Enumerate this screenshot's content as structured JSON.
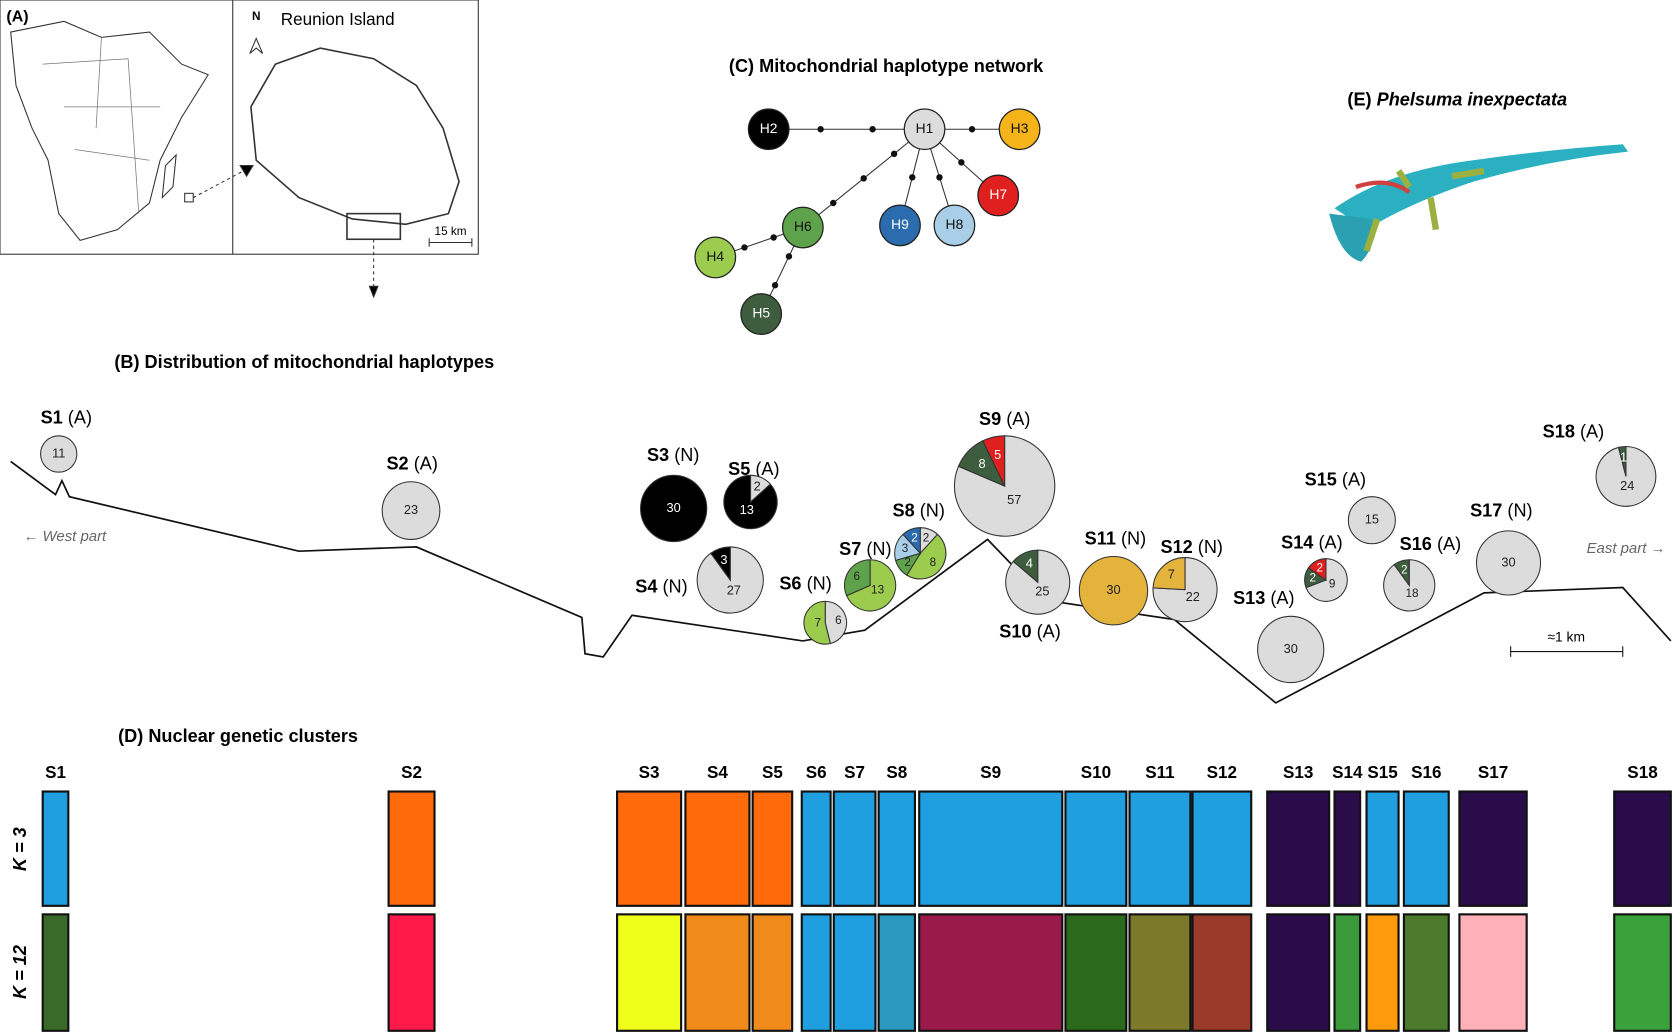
{
  "panel_a": {
    "label": "(A)",
    "north": "N",
    "island": "Reunion Island",
    "scale": "15 km"
  },
  "panel_b": {
    "title": "(B) Distribution of mitochondrial haplotypes",
    "west": "← West part",
    "east": "East part →",
    "scale": "≈1 km",
    "sites": [
      {
        "name": "S1",
        "status": "(A)",
        "segments": [
          {
            "count": 11,
            "color": "#dcdcdc"
          }
        ]
      },
      {
        "name": "S2",
        "status": "(A)",
        "segments": [
          {
            "count": 23,
            "color": "#dcdcdc"
          }
        ]
      },
      {
        "name": "S3",
        "status": "(N)",
        "segments": [
          {
            "count": 30,
            "color": "#000000"
          }
        ]
      },
      {
        "name": "S5",
        "status": "(A)",
        "segments": [
          {
            "count": 2,
            "color": "#dcdcdc"
          },
          {
            "count": 13,
            "color": "#000000"
          }
        ]
      },
      {
        "name": "S4",
        "status": "(N)",
        "segments": [
          {
            "count": 27,
            "color": "#dcdcdc"
          },
          {
            "count": 3,
            "color": "#000000"
          }
        ]
      },
      {
        "name": "S6",
        "status": "(N)",
        "segments": [
          {
            "count": 6,
            "color": "#dcdcdc"
          },
          {
            "count": 7,
            "color": "#9ccc4e"
          }
        ]
      },
      {
        "name": "S7",
        "status": "(N)",
        "segments": [
          {
            "count": 13,
            "color": "#9ccc4e"
          },
          {
            "count": 6,
            "color": "#5ea34b"
          }
        ]
      },
      {
        "name": "S8",
        "status": "(N)",
        "segments": [
          {
            "count": 2,
            "color": "#dcdcdc"
          },
          {
            "count": 8,
            "color": "#9ccc4e"
          },
          {
            "count": 2,
            "color": "#5ea34b"
          },
          {
            "count": 3,
            "color": "#a9cfe8"
          },
          {
            "count": 2,
            "color": "#2a6cad"
          }
        ]
      },
      {
        "name": "S9",
        "status": "(A)",
        "segments": [
          {
            "count": 57,
            "color": "#dcdcdc"
          },
          {
            "count": 8,
            "color": "#3e5c3e"
          },
          {
            "count": 5,
            "color": "#e0201f"
          }
        ]
      },
      {
        "name": "S10",
        "status": "(A)",
        "segments": [
          {
            "count": 25,
            "color": "#dcdcdc"
          },
          {
            "count": 4,
            "color": "#3e5c3e"
          }
        ]
      },
      {
        "name": "S11",
        "status": "(N)",
        "segments": [
          {
            "count": 30,
            "color": "#e4b33c"
          }
        ]
      },
      {
        "name": "S12",
        "status": "(N)",
        "segments": [
          {
            "count": 22,
            "color": "#dcdcdc"
          },
          {
            "count": 7,
            "color": "#e4b33c"
          }
        ]
      },
      {
        "name": "S13",
        "status": "(A)",
        "segments": [
          {
            "count": 30,
            "color": "#dcdcdc"
          }
        ]
      },
      {
        "name": "S14",
        "status": "(A)",
        "segments": [
          {
            "count": 9,
            "color": "#dcdcdc"
          },
          {
            "count": 2,
            "color": "#3e5c3e"
          },
          {
            "count": 2,
            "color": "#e0201f"
          }
        ]
      },
      {
        "name": "S15",
        "status": "(A)",
        "segments": [
          {
            "count": 15,
            "color": "#dcdcdc"
          }
        ]
      },
      {
        "name": "S16",
        "status": "(A)",
        "segments": [
          {
            "count": 18,
            "color": "#dcdcdc"
          },
          {
            "count": 2,
            "color": "#3e5c3e"
          }
        ]
      },
      {
        "name": "S17",
        "status": "(N)",
        "segments": [
          {
            "count": 30,
            "color": "#dcdcdc"
          }
        ]
      },
      {
        "name": "S18",
        "status": "(A)",
        "segments": [
          {
            "count": 24,
            "color": "#dcdcdc"
          },
          {
            "count": 1,
            "color": "#3e5c3e"
          }
        ]
      }
    ]
  },
  "panel_c": {
    "title": "(C) Mitochondrial haplotype network",
    "nodes": [
      {
        "label": "H1",
        "color": "#dcdcdc"
      },
      {
        "label": "H2",
        "color": "#000000"
      },
      {
        "label": "H3",
        "color": "#f4b41a"
      },
      {
        "label": "H7",
        "color": "#e0201f"
      },
      {
        "label": "H8",
        "color": "#a9cfe8"
      },
      {
        "label": "H9",
        "color": "#2a6cad"
      },
      {
        "label": "H6",
        "color": "#5ea34b"
      },
      {
        "label": "H4",
        "color": "#9ccc4e"
      },
      {
        "label": "H5",
        "color": "#3e5c3e"
      }
    ]
  },
  "panel_d": {
    "title": "(D) Nuclear genetic clusters",
    "k3": "K = 3",
    "k12": "K = 12",
    "sites": [
      {
        "name": "S1",
        "k3": "#1f9fe0",
        "k12": "#3a6a2a"
      },
      {
        "name": "S2",
        "k3": "#ff6a0a",
        "k12": "#ff1a4a"
      },
      {
        "name": "S3",
        "k3": "#ff6a0a",
        "k12": "#f0ff1a"
      },
      {
        "name": "S4",
        "k3": "#ff6a0a",
        "k12": "#f08a1a"
      },
      {
        "name": "S5",
        "k3": "#ff6a0a",
        "k12": "#f08a1a"
      },
      {
        "name": "S6",
        "k3": "#1f9fe0",
        "k12": "#1f9fe0"
      },
      {
        "name": "S7",
        "k3": "#1f9fe0",
        "k12": "#1f9fe0"
      },
      {
        "name": "S8",
        "k3": "#1f9fe0",
        "k12": "#2a9ac0"
      },
      {
        "name": "S9",
        "k3": "#1f9fe0",
        "k12": "#9a1a4a"
      },
      {
        "name": "S10",
        "k3": "#1f9fe0",
        "k12": "#2a6a1a"
      },
      {
        "name": "S11",
        "k3": "#1f9fe0",
        "k12": "#7a7a2a"
      },
      {
        "name": "S12",
        "k3": "#1f9fe0",
        "k12": "#9a3a2a"
      },
      {
        "name": "S13",
        "k3": "#2a0c4a",
        "k12": "#2a0c4a"
      },
      {
        "name": "S14",
        "k3": "#2a0c4a",
        "k12": "#3a9a3a"
      },
      {
        "name": "S15",
        "k3": "#1f9fe0",
        "k12": "#ff9a0a"
      },
      {
        "name": "S16",
        "k3": "#1f9fe0",
        "k12": "#4a7a2a"
      },
      {
        "name": "S17",
        "k3": "#2a0c4a",
        "k12": "#ffb0b8"
      },
      {
        "name": "S18",
        "k3": "#2a0c4a",
        "k12": "#3aa23a"
      }
    ]
  },
  "panel_e": {
    "label": "(E)",
    "species": "Phelsuma inexpectata"
  }
}
